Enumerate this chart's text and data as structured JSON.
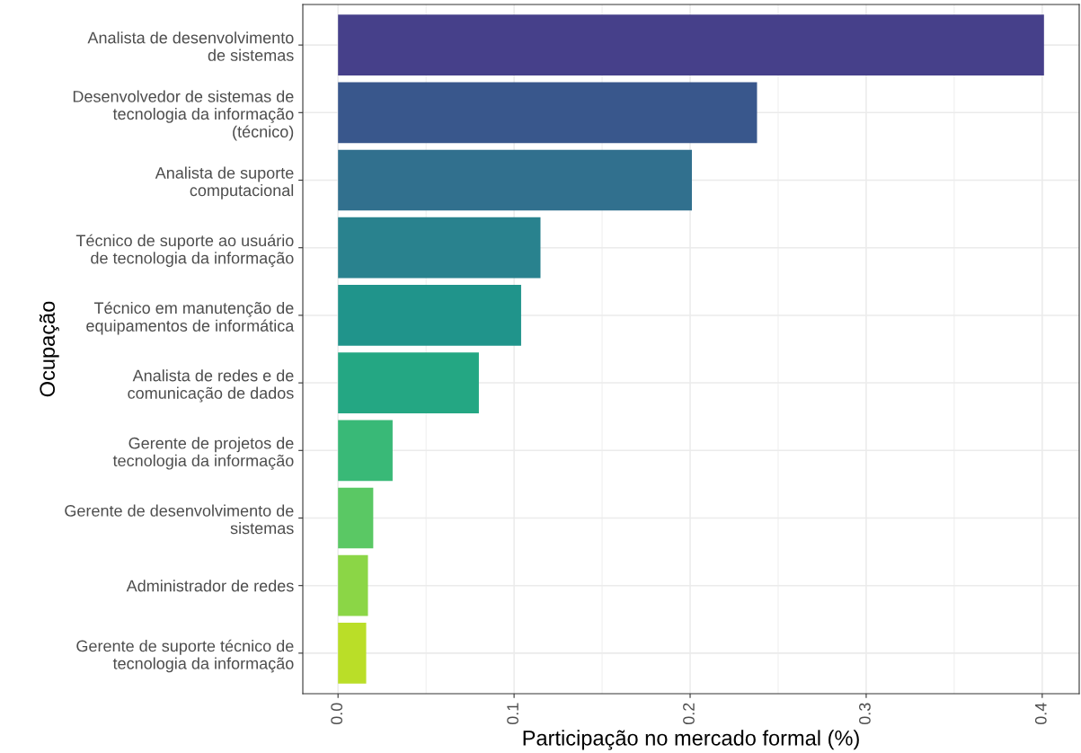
{
  "chart_data": {
    "type": "bar",
    "orientation": "horizontal",
    "xlabel": "Participação no mercado formal (%)",
    "ylabel": "Ocupação",
    "categories": [
      "Analista de desenvolvimento\nde sistemas",
      "Desenvolvedor de sistemas de\ntecnologia da informação\n(técnico)",
      "Analista de suporte\ncomputacional",
      "Técnico de suporte ao usuário\nde tecnologia da informação",
      "Técnico em manutenção de\nequipamentos de informática",
      "Analista de redes e de\ncomunicação de dados",
      "Gerente de projetos de\ntecnologia da informação",
      "Gerente de desenvolvimento de\nsistemas",
      "Administrador de redes",
      "Gerente de suporte técnico de\ntecnologia da informação"
    ],
    "values": [
      0.401,
      0.238,
      0.201,
      0.115,
      0.104,
      0.08,
      0.031,
      0.02,
      0.017,
      0.016
    ],
    "colors": [
      "#46408a",
      "#39578c",
      "#31708e",
      "#29828e",
      "#20948b",
      "#24a783",
      "#39b977",
      "#5ac864",
      "#8bd646",
      "#bade28"
    ],
    "xlim": [
      -0.02,
      0.421
    ],
    "xticks": [
      {
        "value": 0,
        "label": "0.0"
      },
      0.1,
      0.2,
      0.3,
      0.4
    ],
    "grid": true
  }
}
